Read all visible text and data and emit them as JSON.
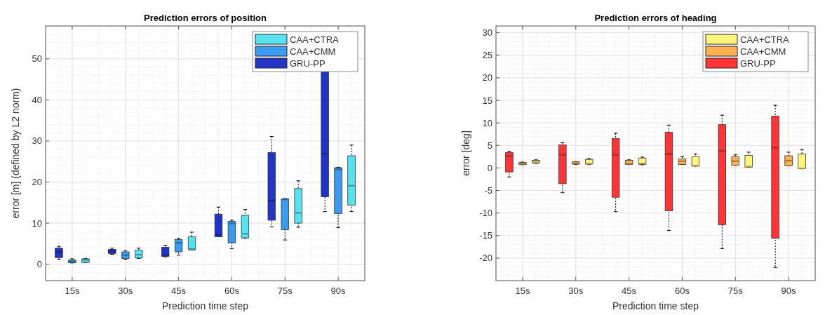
{
  "chart_data": [
    {
      "type": "box",
      "title": "Prediction errors of position",
      "xlabel": "Prediction time step",
      "ylabel": "error [m] (defined by L2 norm)",
      "categories": [
        "15s",
        "30s",
        "45s",
        "60s",
        "75s",
        "90s"
      ],
      "ylim": [
        -4,
        58
      ],
      "yticks": [
        0,
        10,
        20,
        30,
        40,
        50
      ],
      "grid": true,
      "legend": "top right",
      "series": [
        {
          "name": "CAA+CTRA",
          "color": "#55e3f2",
          "boxes": [
            {
              "low": 0.35,
              "q1": 0.4,
              "median": 1.0,
              "q3": 1.3,
              "high": 1.4
            },
            {
              "low": 1.4,
              "q1": 1.5,
              "median": 2.3,
              "q3": 3.4,
              "high": 3.9
            },
            {
              "low": 3.5,
              "q1": 3.5,
              "median": 3.7,
              "q3": 6.7,
              "high": 7.8
            },
            {
              "low": 6.3,
              "q1": 6.4,
              "median": 7.4,
              "q3": 11.9,
              "high": 13.3
            },
            {
              "low": 9.0,
              "q1": 10.0,
              "median": 12.5,
              "q3": 18.4,
              "high": 20.3
            },
            {
              "low": 12.8,
              "q1": 14.4,
              "median": 19.1,
              "q3": 26.4,
              "high": 29.0
            }
          ]
        },
        {
          "name": "CAA+CMM",
          "color": "#3a9cf0",
          "boxes": [
            {
              "low": 0.3,
              "q1": 0.35,
              "median": 0.7,
              "q3": 1.0,
              "high": 1.3
            },
            {
              "low": 1.2,
              "q1": 1.4,
              "median": 2.2,
              "q3": 3.0,
              "high": 3.3
            },
            {
              "low": 2.2,
              "q1": 3.0,
              "median": 5.2,
              "q3": 6.0,
              "high": 6.3
            },
            {
              "low": 3.8,
              "q1": 5.2,
              "median": 9.9,
              "q3": 10.4,
              "high": 10.7
            },
            {
              "low": 5.9,
              "q1": 8.4,
              "median": 15.8,
              "q3": 15.9,
              "high": 16.0
            },
            {
              "low": 8.9,
              "q1": 12.3,
              "median": 23.1,
              "q3": 23.5,
              "high": 23.6
            }
          ]
        },
        {
          "name": "GRU-PP",
          "color": "#2234c8",
          "boxes": [
            {
              "low": 1.2,
              "q1": 1.6,
              "median": 3.0,
              "q3": 3.9,
              "high": 4.35
            },
            {
              "low": 2.4,
              "q1": 2.6,
              "median": 3.1,
              "q3": 3.6,
              "high": 3.9
            },
            {
              "low": 1.8,
              "q1": 1.9,
              "median": 2.2,
              "q3": 4.1,
              "high": 4.6
            },
            {
              "low": 6.7,
              "q1": 6.7,
              "median": 7.2,
              "q3": 12.2,
              "high": 13.9
            },
            {
              "low": 9.1,
              "q1": 10.7,
              "median": 15.5,
              "q3": 27.2,
              "high": 31.1
            },
            {
              "low": 12.8,
              "q1": 16.4,
              "median": 26.9,
              "q3": 47.2,
              "high": 53.9
            }
          ]
        }
      ]
    },
    {
      "type": "box",
      "title": "Prediction errors of heading",
      "xlabel": "Prediction time step",
      "ylabel": "error [deg]",
      "categories": [
        "15s",
        "30s",
        "45s",
        "60s",
        "75s",
        "90s"
      ],
      "ylim": [
        -25,
        31.5
      ],
      "yticks": [
        -20,
        -15,
        -10,
        -5,
        0,
        5,
        10,
        15,
        20,
        25,
        30
      ],
      "grid": true,
      "legend": "top right",
      "series": [
        {
          "name": "CAA+CTRA",
          "color": "#fff57a",
          "boxes": [
            {
              "low": 1.0,
              "q1": 1.1,
              "median": 1.35,
              "q3": 1.7,
              "high": 1.8
            },
            {
              "low": 0.8,
              "q1": 0.85,
              "median": 0.95,
              "q3": 1.9,
              "high": 2.1
            },
            {
              "low": 0.7,
              "q1": 0.8,
              "median": 1.0,
              "q3": 2.2,
              "high": 2.4
            },
            {
              "low": 0.4,
              "q1": 0.4,
              "median": 0.5,
              "q3": 2.5,
              "high": 3.1
            },
            {
              "low": 0.2,
              "q1": 0.2,
              "median": 0.3,
              "q3": 2.8,
              "high": 3.5
            },
            {
              "low": -0.2,
              "q1": -0.15,
              "median": -0.1,
              "q3": 3.1,
              "high": 4.1
            }
          ]
        },
        {
          "name": "CAA+CMM",
          "color": "#ffb050",
          "boxes": [
            {
              "low": 0.7,
              "q1": 0.75,
              "median": 0.9,
              "q3": 1.2,
              "high": 1.3
            },
            {
              "low": 0.8,
              "q1": 0.85,
              "median": 1.0,
              "q3": 1.35,
              "high": 1.4
            },
            {
              "low": 0.75,
              "q1": 0.75,
              "median": 0.9,
              "q3": 1.7,
              "high": 1.8
            },
            {
              "low": 0.75,
              "q1": 0.75,
              "median": 1.5,
              "q3": 2.0,
              "high": 2.5
            },
            {
              "low": 0.6,
              "q1": 0.6,
              "median": 1.5,
              "q3": 2.5,
              "high": 2.9
            },
            {
              "low": 0.5,
              "q1": 0.5,
              "median": 1.6,
              "q3": 2.7,
              "high": 3.5
            }
          ]
        },
        {
          "name": "GRU-PP",
          "color": "#ff3535",
          "boxes": [
            {
              "low": -2.0,
              "q1": -0.9,
              "median": 2.6,
              "q3": 3.4,
              "high": 3.7
            },
            {
              "low": -5.5,
              "q1": -3.5,
              "median": 2.9,
              "q3": 5.1,
              "high": 5.6
            },
            {
              "low": -9.7,
              "q1": -6.5,
              "median": 2.9,
              "q3": 6.5,
              "high": 7.7
            },
            {
              "low": -13.9,
              "q1": -9.5,
              "median": 3.1,
              "q3": 7.9,
              "high": 9.5
            },
            {
              "low": -17.9,
              "q1": -12.6,
              "median": 3.8,
              "q3": 9.6,
              "high": 11.7
            },
            {
              "low": -22.1,
              "q1": -15.6,
              "median": 4.5,
              "q3": 11.5,
              "high": 13.9
            }
          ]
        }
      ]
    }
  ]
}
